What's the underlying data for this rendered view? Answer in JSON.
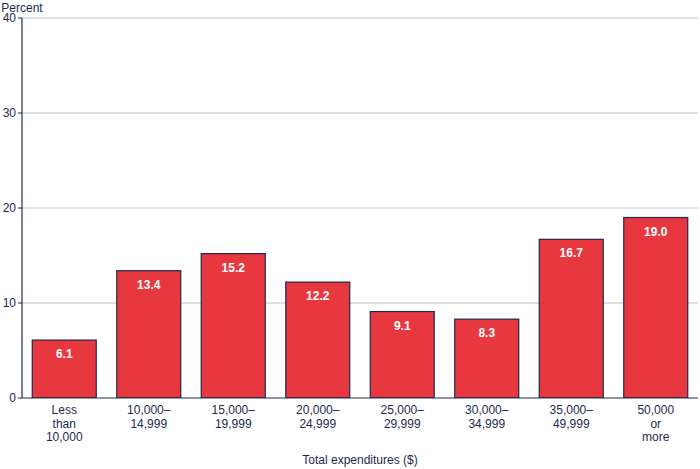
{
  "chart_data": {
    "type": "bar",
    "y_label": "Percent",
    "x_label": "Total expenditures ($)",
    "categories": [
      "Less than 10,000",
      "10,000–14,999",
      "15,000–19,999",
      "20,000–24,999",
      "25,000–29,999",
      "30,000–34,999",
      "35,000–49,999",
      "50,000 or more"
    ],
    "values": [
      6.1,
      13.4,
      15.2,
      12.2,
      9.1,
      8.3,
      16.7,
      19.0
    ],
    "value_labels": [
      "6.1",
      "13.4",
      "15.2",
      "12.2",
      "9.1",
      "8.3",
      "16.7",
      "19.0"
    ],
    "color": "#e8383f",
    "ylim": [
      0,
      40
    ],
    "yticks": [
      0,
      10,
      20,
      30,
      40
    ],
    "grid": true,
    "data_labels": true
  }
}
